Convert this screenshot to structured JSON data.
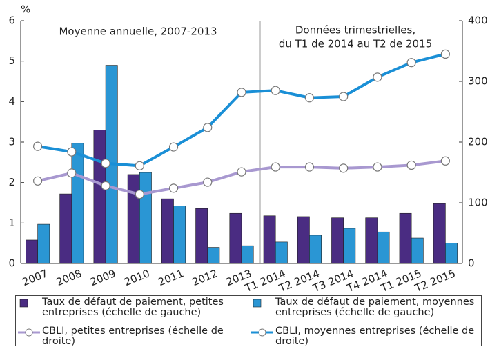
{
  "chart_data": {
    "type": "bar",
    "y_label": "%",
    "annotations": [
      "Moyenne annuelle, 2007-2013",
      "Données trimestrielles,",
      "du T1 de 2014 au T2 de 2015"
    ],
    "categories": [
      "2007",
      "2008",
      "2009",
      "2010",
      "2011",
      "2012",
      "2013",
      "T1 2014",
      "T2 2014",
      "T3 2014",
      "T4 2014",
      "T1 2015",
      "T2 2015"
    ],
    "ylim": [
      0,
      6
    ],
    "yticks": [
      0,
      1,
      2,
      3,
      4,
      5,
      6
    ],
    "y2lim": [
      0,
      400
    ],
    "y2ticks": [
      0,
      100,
      200,
      300,
      400
    ],
    "grid": false,
    "series": [
      {
        "name": "Taux de défaut de paiement, petites entreprises (échelle de gauche)",
        "type": "bar",
        "color": "#4a2c82",
        "values": [
          0.58,
          1.72,
          3.3,
          2.2,
          1.6,
          1.36,
          1.24,
          1.18,
          1.16,
          1.13,
          1.13,
          1.24,
          1.48
        ]
      },
      {
        "name": "Taux de défaut de paiement, moyennes entreprises (échelle de gauche)",
        "type": "bar",
        "color": "#2a96d4",
        "values": [
          0.97,
          2.97,
          4.9,
          2.25,
          1.42,
          0.4,
          0.44,
          0.53,
          0.7,
          0.87,
          0.78,
          0.63,
          0.5
        ]
      },
      {
        "name": "CBLI, petites entreprises (échelle de droite)",
        "type": "line",
        "axis": "y2",
        "color": "#a898d0",
        "values": [
          136,
          149,
          128,
          114,
          124,
          134,
          151,
          159,
          159,
          157,
          159,
          162,
          169
        ]
      },
      {
        "name": "CBLI, moyennes entreprises (échelle de droite)",
        "type": "line",
        "axis": "y2",
        "color": "#1a8fd6",
        "values": [
          193,
          184,
          165,
          161,
          192,
          224,
          282,
          285,
          273,
          275,
          307,
          331,
          345
        ]
      }
    ]
  }
}
